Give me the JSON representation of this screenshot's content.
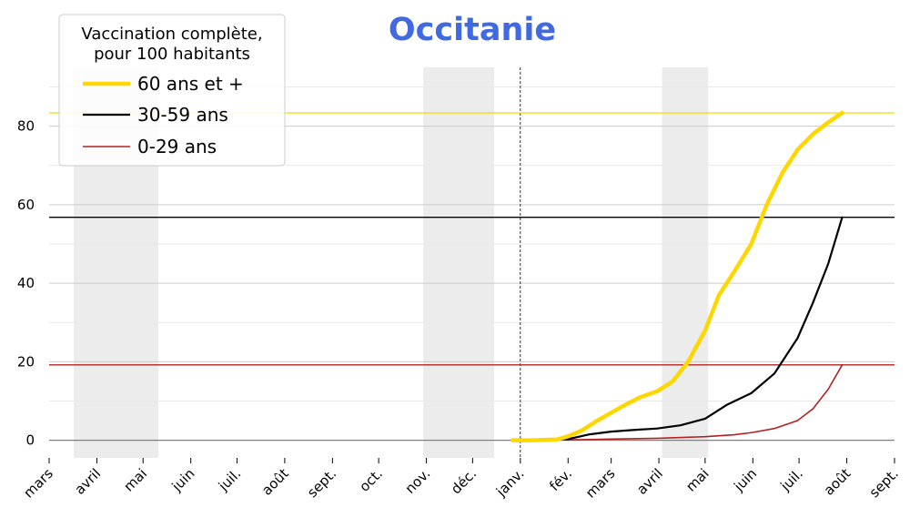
{
  "chart_data": {
    "type": "line",
    "title": "Occitanie",
    "title_color": "#4169e1",
    "xlabel": "",
    "ylabel": "",
    "ylim": [
      -4.5,
      95
    ],
    "y_ticks": [
      0,
      20,
      40,
      60,
      80
    ],
    "xlim": [
      "2020-03-01",
      "2021-09-01"
    ],
    "x_ticks": [
      {
        "date": "2020-03-01",
        "label": "mars"
      },
      {
        "date": "2020-04-01",
        "label": "avril"
      },
      {
        "date": "2020-05-01",
        "label": "mai"
      },
      {
        "date": "2020-06-01",
        "label": "juin"
      },
      {
        "date": "2020-07-01",
        "label": "juil."
      },
      {
        "date": "2020-08-01",
        "label": "août"
      },
      {
        "date": "2020-09-01",
        "label": "sept."
      },
      {
        "date": "2020-10-01",
        "label": "oct."
      },
      {
        "date": "2020-11-01",
        "label": "nov."
      },
      {
        "date": "2020-12-01",
        "label": "déc."
      },
      {
        "date": "2021-01-01",
        "label": "janv."
      },
      {
        "date": "2021-02-01",
        "label": "fév."
      },
      {
        "date": "2021-03-01",
        "label": "mars"
      },
      {
        "date": "2021-04-01",
        "label": "avril"
      },
      {
        "date": "2021-05-01",
        "label": "mai"
      },
      {
        "date": "2021-06-01",
        "label": "juin"
      },
      {
        "date": "2021-07-01",
        "label": "juil."
      },
      {
        "date": "2021-08-01",
        "label": "août"
      },
      {
        "date": "2021-09-01",
        "label": "sept."
      }
    ],
    "grid": true,
    "shaded_periods": [
      {
        "start": "2020-03-17",
        "end": "2020-05-11"
      },
      {
        "start": "2020-10-30",
        "end": "2020-12-15"
      },
      {
        "start": "2021-04-03",
        "end": "2021-05-03"
      }
    ],
    "vertical_marker": {
      "date": "2021-01-01"
    },
    "legend": {
      "title": "Vaccination complète,\npour 100 habitants",
      "placement": "top-left"
    },
    "series": [
      {
        "name": "60 ans et +",
        "color": "#ffd700",
        "reference_value": 83.4,
        "points": [
          [
            "2020-12-27",
            0
          ],
          [
            "2021-01-10",
            0
          ],
          [
            "2021-01-25",
            0.2
          ],
          [
            "2021-02-01",
            1
          ],
          [
            "2021-02-10",
            2.5
          ],
          [
            "2021-02-20",
            5
          ],
          [
            "2021-03-01",
            7
          ],
          [
            "2021-03-10",
            9
          ],
          [
            "2021-03-20",
            11
          ],
          [
            "2021-03-31",
            12.5
          ],
          [
            "2021-04-10",
            15
          ],
          [
            "2021-04-20",
            20
          ],
          [
            "2021-05-01",
            28
          ],
          [
            "2021-05-10",
            37
          ],
          [
            "2021-05-20",
            43
          ],
          [
            "2021-05-31",
            50
          ],
          [
            "2021-06-10",
            60
          ],
          [
            "2021-06-20",
            68
          ],
          [
            "2021-06-30",
            74
          ],
          [
            "2021-07-10",
            78
          ],
          [
            "2021-07-20",
            81
          ],
          [
            "2021-07-29",
            83.4
          ]
        ]
      },
      {
        "name": "30-59 ans",
        "color": "#000000",
        "reference_value": 56.8,
        "points": [
          [
            "2020-12-27",
            0
          ],
          [
            "2021-01-15",
            0
          ],
          [
            "2021-02-01",
            0.3
          ],
          [
            "2021-02-15",
            1.5
          ],
          [
            "2021-03-01",
            2.2
          ],
          [
            "2021-03-15",
            2.6
          ],
          [
            "2021-03-31",
            3
          ],
          [
            "2021-04-15",
            3.8
          ],
          [
            "2021-05-01",
            5.5
          ],
          [
            "2021-05-15",
            9
          ],
          [
            "2021-05-31",
            12
          ],
          [
            "2021-06-15",
            17
          ],
          [
            "2021-06-30",
            26
          ],
          [
            "2021-07-10",
            35
          ],
          [
            "2021-07-20",
            45
          ],
          [
            "2021-07-29",
            56.8
          ]
        ]
      },
      {
        "name": "0-29 ans",
        "color": "#b22222",
        "reference_value": 19.2,
        "points": [
          [
            "2020-12-27",
            0
          ],
          [
            "2021-02-01",
            0.1
          ],
          [
            "2021-03-01",
            0.3
          ],
          [
            "2021-04-01",
            0.5
          ],
          [
            "2021-05-01",
            0.9
          ],
          [
            "2021-05-20",
            1.4
          ],
          [
            "2021-06-01",
            2
          ],
          [
            "2021-06-15",
            3
          ],
          [
            "2021-06-30",
            5
          ],
          [
            "2021-07-10",
            8
          ],
          [
            "2021-07-20",
            13
          ],
          [
            "2021-07-29",
            19.2
          ]
        ]
      }
    ]
  }
}
